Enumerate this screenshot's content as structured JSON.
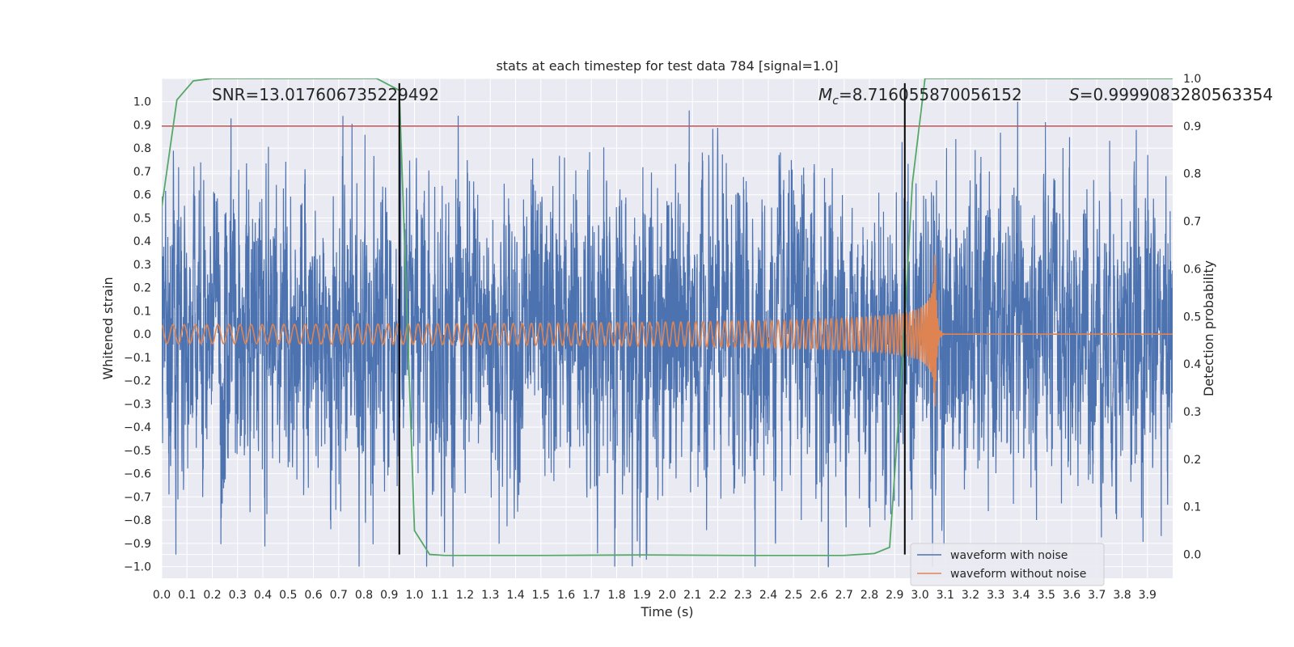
{
  "chart_data": {
    "type": "line",
    "title": "stats at each timestep for test data 784 [signal=1.0]",
    "xlabel": "Time (s)",
    "ylabel": "Whitened strain",
    "y2label": "Detection probability",
    "xlim": [
      0.0,
      4.0
    ],
    "ylim": [
      -1.05,
      1.1
    ],
    "y2lim": [
      -0.05,
      1.0
    ],
    "x_ticks": [
      "0.0",
      "0.1",
      "0.2",
      "0.3",
      "0.4",
      "0.5",
      "0.6",
      "0.7",
      "0.8",
      "0.9",
      "1.0",
      "1.1",
      "1.2",
      "1.3",
      "1.4",
      "1.5",
      "1.6",
      "1.7",
      "1.8",
      "1.9",
      "2.0",
      "2.1",
      "2.2",
      "2.3",
      "2.4",
      "2.5",
      "2.6",
      "2.7",
      "2.8",
      "2.9",
      "3.0",
      "3.1",
      "3.2",
      "3.3",
      "3.4",
      "3.5",
      "3.6",
      "3.7",
      "3.8",
      "3.9"
    ],
    "y_ticks": [
      "1.0",
      "0.9",
      "0.8",
      "0.7",
      "0.6",
      "0.5",
      "0.4",
      "0.3",
      "0.2",
      "0.1",
      "0.0",
      "−0.1",
      "−0.2",
      "−0.3",
      "−0.4",
      "−0.5",
      "−0.6",
      "−0.7",
      "−0.8",
      "−0.9",
      "−1.0"
    ],
    "y2_ticks": [
      "1.0",
      "0.9",
      "0.8",
      "0.7",
      "0.6",
      "0.5",
      "0.4",
      "0.3",
      "0.2",
      "0.1",
      "0.0"
    ],
    "grid": true,
    "legend_position": "bottom-right",
    "annotations": {
      "snr": "SNR=13.017606735229492",
      "mc_symbol": "M",
      "mc_sub": "c",
      "mc_value": "=8.716055870056152",
      "s_symbol": "S",
      "s_value": "=0.9999083280563354"
    },
    "series": [
      {
        "name": "waveform with noise",
        "color": "#4c72b0",
        "noise_amplitude": 0.5
      },
      {
        "name": "waveform without noise",
        "color": "#dd8452",
        "chirp": {
          "merger_time": 3.06,
          "amp_start": 0.04,
          "amp_peak": 0.45,
          "freq_start": 22,
          "freq_merger": 200
        }
      },
      {
        "name": "detection probability",
        "color": "#55a868",
        "axis": "y2",
        "x": [
          0.0,
          0.06,
          0.125,
          0.2,
          0.3,
          0.5,
          0.7,
          0.85,
          0.94,
          1.0,
          1.06,
          1.12,
          1.5,
          1.9,
          2.3,
          2.7,
          2.82,
          2.88,
          2.93,
          2.97,
          3.02,
          3.2,
          3.6,
          4.0
        ],
        "y": [
          0.73,
          0.955,
          0.995,
          1.0,
          1.0,
          1.0,
          1.0,
          1.0,
          0.975,
          0.05,
          0.0,
          -0.002,
          -0.002,
          -0.001,
          -0.002,
          -0.002,
          0.002,
          0.015,
          0.4,
          0.78,
          1.0,
          1.0,
          1.0,
          1.0
        ]
      }
    ],
    "hlines": [
      {
        "axis": "y2",
        "y": 0.9,
        "color": "#c44e52"
      }
    ],
    "vlines": [
      {
        "x": 0.94,
        "color": "#000000"
      },
      {
        "x": 2.94,
        "color": "#000000"
      }
    ]
  }
}
